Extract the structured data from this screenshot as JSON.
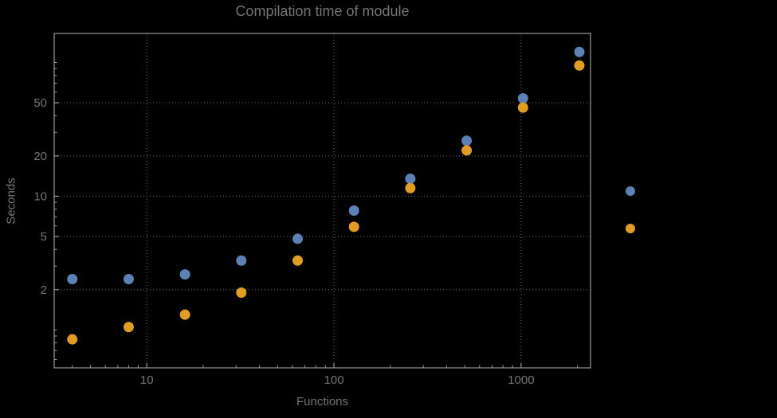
{
  "title": "Compilation time of module",
  "xlabel": "Functions",
  "ylabel": "Seconds",
  "colors": {
    "background": "#000000",
    "series_blue": "#5e81b5",
    "series_orange": "#e19c24",
    "frame": "#989898",
    "grid": "#5e5e5e",
    "text": "#757575"
  },
  "chart_data": {
    "type": "scatter",
    "title": "Compilation time of module",
    "xlabel": "Functions",
    "ylabel": "Seconds",
    "xscale": "log",
    "yscale": "log",
    "grid": true,
    "xlim": [
      3.2,
      2350
    ],
    "ylim": [
      0.52,
      165
    ],
    "xticks": [
      10,
      100,
      1000
    ],
    "yticks": [
      2,
      5,
      10,
      20,
      50
    ],
    "x": [
      4,
      8,
      16,
      32,
      64,
      128,
      256,
      512,
      1024,
      2048
    ],
    "series": [
      {
        "name": "series-blue",
        "color": "#5e81b5",
        "values": [
          2.4,
          2.4,
          2.6,
          3.3,
          4.8,
          7.8,
          13.5,
          26,
          54,
          120
        ]
      },
      {
        "name": "series-orange",
        "color": "#e19c24",
        "values": [
          0.85,
          1.05,
          1.3,
          1.9,
          3.3,
          5.9,
          11.5,
          22,
          46,
          95
        ]
      }
    ],
    "legend_position": "right-outside",
    "legend_labels": [
      "",
      ""
    ]
  }
}
